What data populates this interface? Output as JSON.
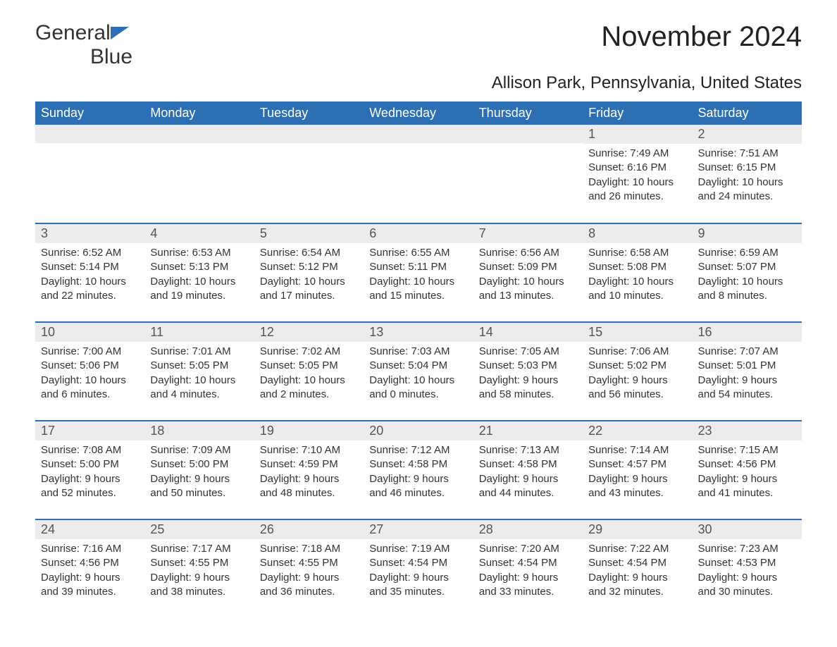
{
  "logo": {
    "text1": "General",
    "text2": "Blue"
  },
  "title": "November 2024",
  "subtitle": "Allison Park, Pennsylvania, United States",
  "colors": {
    "header_bg": "#2d6fb5",
    "header_text": "#ffffff",
    "daynum_bg": "#ececec",
    "text": "#333333",
    "border": "#2d6fb5"
  },
  "fontsize": {
    "title": 40,
    "subtitle": 24,
    "th": 18,
    "daynum": 18,
    "body": 15
  },
  "columns": [
    "Sunday",
    "Monday",
    "Tuesday",
    "Wednesday",
    "Thursday",
    "Friday",
    "Saturday"
  ],
  "weeks": [
    [
      null,
      null,
      null,
      null,
      null,
      {
        "n": "1",
        "sr": "7:49 AM",
        "ss": "6:16 PM",
        "dl": "10 hours and 26 minutes."
      },
      {
        "n": "2",
        "sr": "7:51 AM",
        "ss": "6:15 PM",
        "dl": "10 hours and 24 minutes."
      }
    ],
    [
      {
        "n": "3",
        "sr": "6:52 AM",
        "ss": "5:14 PM",
        "dl": "10 hours and 22 minutes."
      },
      {
        "n": "4",
        "sr": "6:53 AM",
        "ss": "5:13 PM",
        "dl": "10 hours and 19 minutes."
      },
      {
        "n": "5",
        "sr": "6:54 AM",
        "ss": "5:12 PM",
        "dl": "10 hours and 17 minutes."
      },
      {
        "n": "6",
        "sr": "6:55 AM",
        "ss": "5:11 PM",
        "dl": "10 hours and 15 minutes."
      },
      {
        "n": "7",
        "sr": "6:56 AM",
        "ss": "5:09 PM",
        "dl": "10 hours and 13 minutes."
      },
      {
        "n": "8",
        "sr": "6:58 AM",
        "ss": "5:08 PM",
        "dl": "10 hours and 10 minutes."
      },
      {
        "n": "9",
        "sr": "6:59 AM",
        "ss": "5:07 PM",
        "dl": "10 hours and 8 minutes."
      }
    ],
    [
      {
        "n": "10",
        "sr": "7:00 AM",
        "ss": "5:06 PM",
        "dl": "10 hours and 6 minutes."
      },
      {
        "n": "11",
        "sr": "7:01 AM",
        "ss": "5:05 PM",
        "dl": "10 hours and 4 minutes."
      },
      {
        "n": "12",
        "sr": "7:02 AM",
        "ss": "5:05 PM",
        "dl": "10 hours and 2 minutes."
      },
      {
        "n": "13",
        "sr": "7:03 AM",
        "ss": "5:04 PM",
        "dl": "10 hours and 0 minutes."
      },
      {
        "n": "14",
        "sr": "7:05 AM",
        "ss": "5:03 PM",
        "dl": "9 hours and 58 minutes."
      },
      {
        "n": "15",
        "sr": "7:06 AM",
        "ss": "5:02 PM",
        "dl": "9 hours and 56 minutes."
      },
      {
        "n": "16",
        "sr": "7:07 AM",
        "ss": "5:01 PM",
        "dl": "9 hours and 54 minutes."
      }
    ],
    [
      {
        "n": "17",
        "sr": "7:08 AM",
        "ss": "5:00 PM",
        "dl": "9 hours and 52 minutes."
      },
      {
        "n": "18",
        "sr": "7:09 AM",
        "ss": "5:00 PM",
        "dl": "9 hours and 50 minutes."
      },
      {
        "n": "19",
        "sr": "7:10 AM",
        "ss": "4:59 PM",
        "dl": "9 hours and 48 minutes."
      },
      {
        "n": "20",
        "sr": "7:12 AM",
        "ss": "4:58 PM",
        "dl": "9 hours and 46 minutes."
      },
      {
        "n": "21",
        "sr": "7:13 AM",
        "ss": "4:58 PM",
        "dl": "9 hours and 44 minutes."
      },
      {
        "n": "22",
        "sr": "7:14 AM",
        "ss": "4:57 PM",
        "dl": "9 hours and 43 minutes."
      },
      {
        "n": "23",
        "sr": "7:15 AM",
        "ss": "4:56 PM",
        "dl": "9 hours and 41 minutes."
      }
    ],
    [
      {
        "n": "24",
        "sr": "7:16 AM",
        "ss": "4:56 PM",
        "dl": "9 hours and 39 minutes."
      },
      {
        "n": "25",
        "sr": "7:17 AM",
        "ss": "4:55 PM",
        "dl": "9 hours and 38 minutes."
      },
      {
        "n": "26",
        "sr": "7:18 AM",
        "ss": "4:55 PM",
        "dl": "9 hours and 36 minutes."
      },
      {
        "n": "27",
        "sr": "7:19 AM",
        "ss": "4:54 PM",
        "dl": "9 hours and 35 minutes."
      },
      {
        "n": "28",
        "sr": "7:20 AM",
        "ss": "4:54 PM",
        "dl": "9 hours and 33 minutes."
      },
      {
        "n": "29",
        "sr": "7:22 AM",
        "ss": "4:54 PM",
        "dl": "9 hours and 32 minutes."
      },
      {
        "n": "30",
        "sr": "7:23 AM",
        "ss": "4:53 PM",
        "dl": "9 hours and 30 minutes."
      }
    ]
  ],
  "labels": {
    "sunrise": "Sunrise: ",
    "sunset": "Sunset: ",
    "daylight": "Daylight: "
  }
}
